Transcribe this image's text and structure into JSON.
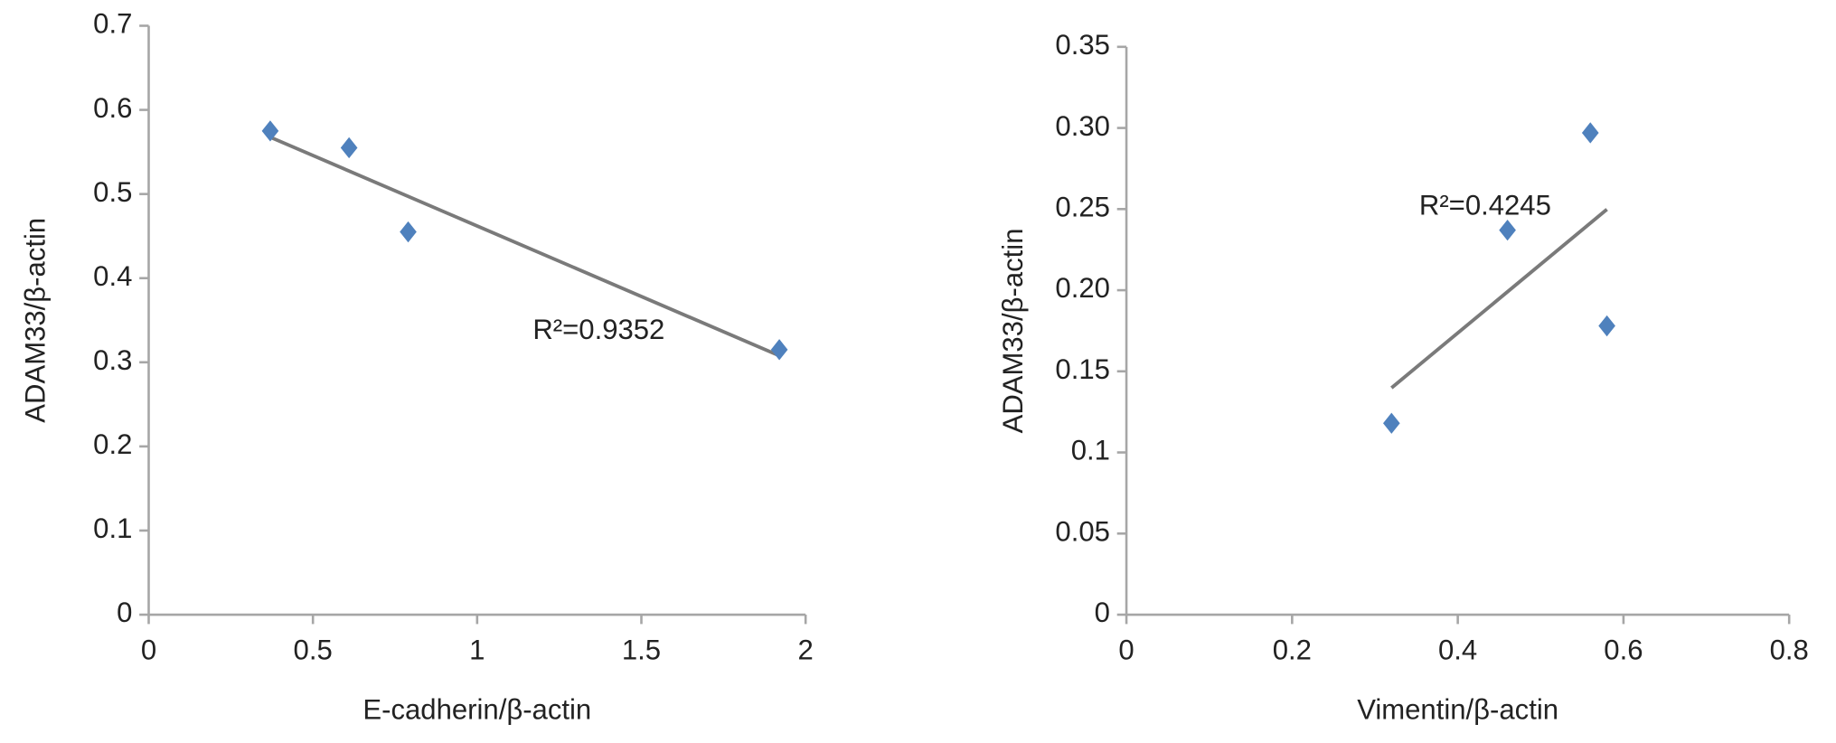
{
  "chart_data": [
    {
      "type": "scatter",
      "x_label": "E-cadherin/β-actin",
      "y_label": "ADAM33/β-actin",
      "annotation": "R²=0.9352",
      "color": "#4f81bd",
      "trendline": true,
      "x": [
        0.37,
        0.61,
        0.79,
        1.92
      ],
      "values": [
        0.575,
        0.555,
        0.455,
        0.315
      ],
      "xlim": [
        0,
        2
      ],
      "xticks": [
        0,
        0.5,
        1,
        1.5,
        2
      ],
      "ylim": [
        0,
        0.7
      ],
      "yticks": [
        0,
        0.1,
        0.2,
        0.3,
        0.4,
        0.5,
        0.6,
        0.7
      ]
    },
    {
      "type": "scatter",
      "x_label": "Vimentin/β-actin",
      "y_label": "ADAM33/β-actin",
      "annotation": "R²=0.4245",
      "color": "#4f81bd",
      "trendline": true,
      "x": [
        0.32,
        0.46,
        0.56,
        0.58
      ],
      "values": [
        0.118,
        0.237,
        0.297,
        0.178
      ],
      "xlim": [
        0,
        0.8
      ],
      "xticks": [
        0,
        0.2,
        0.4,
        0.6,
        0.8
      ],
      "ylim": [
        0,
        0.35
      ],
      "yticks": [
        0,
        0.05,
        0.1,
        0.15,
        {
          "value": 0.2,
          "label": "0.20"
        },
        0.25,
        {
          "value": 0.3,
          "label": "0.30"
        },
        0.35
      ]
    }
  ]
}
